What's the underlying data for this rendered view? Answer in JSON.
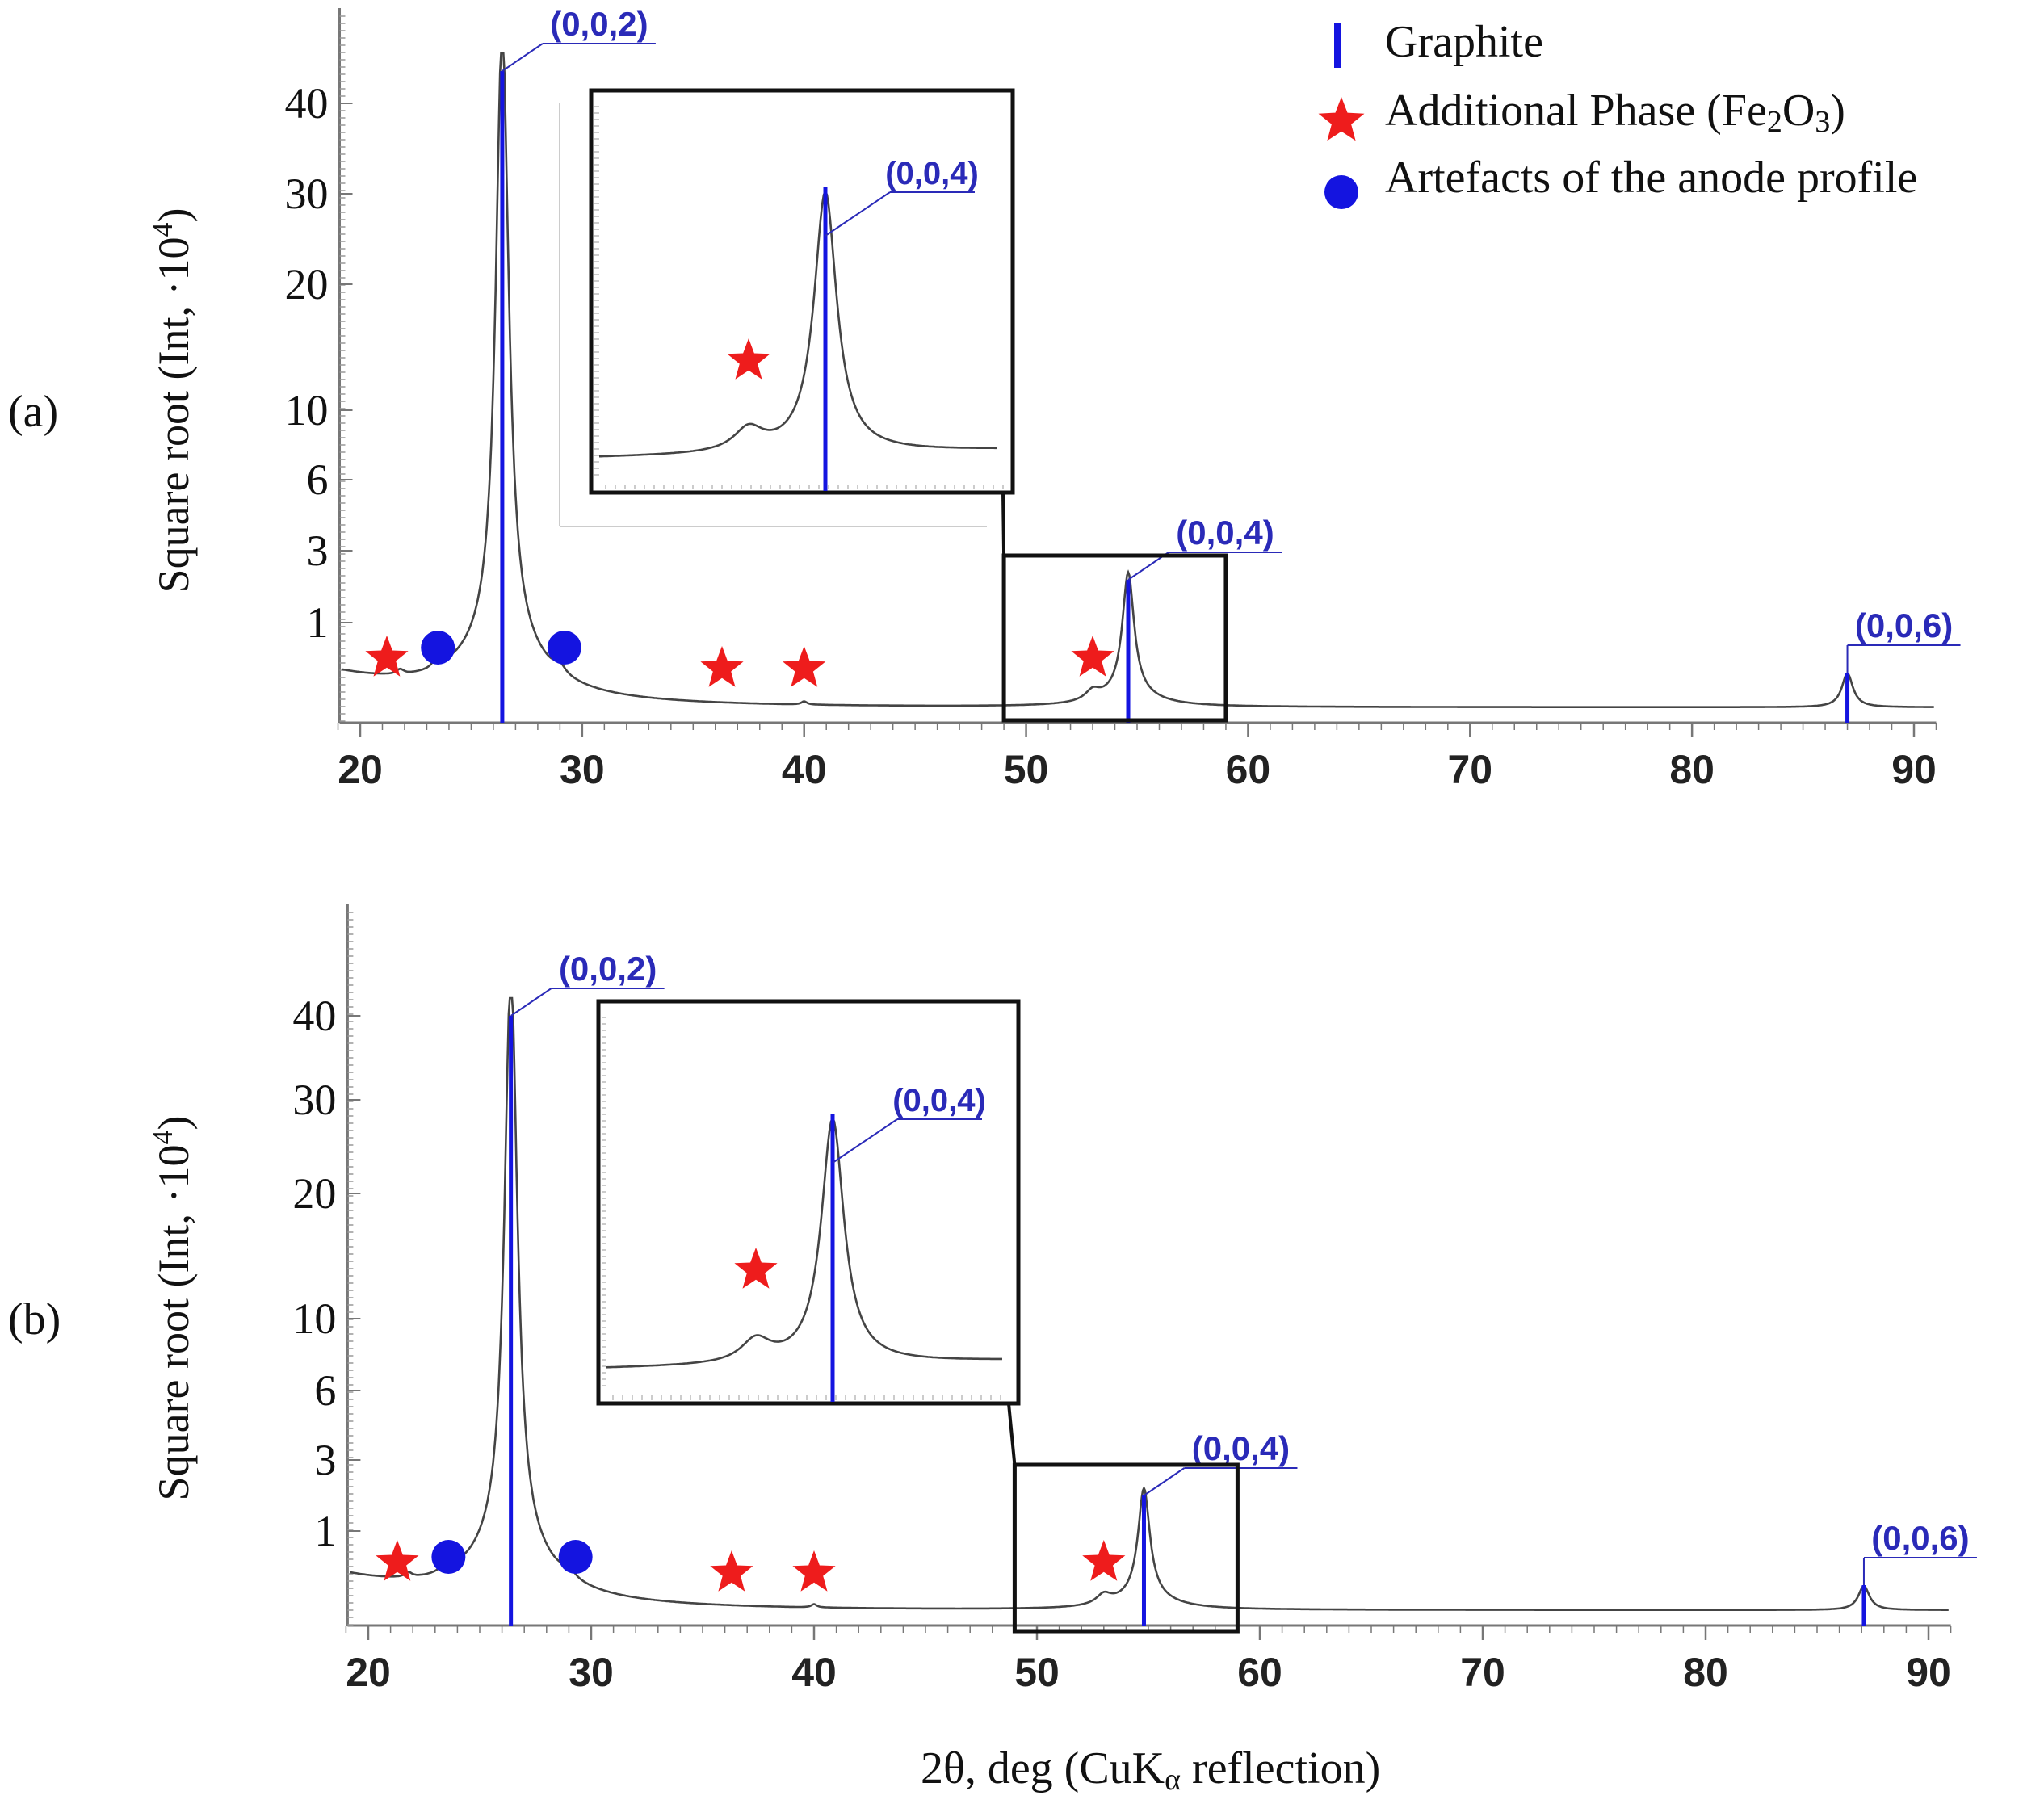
{
  "figure": {
    "xlabel_main": "2θ, deg (CuK",
    "xlabel_sub": "α",
    "xlabel_tail": " reflection)"
  },
  "legend": {
    "graphite": "Graphite",
    "fe2o3_prefix": "Additional Phase (Fe",
    "fe2o3_sub1": "2",
    "fe2o3_mid": "O",
    "fe2o3_sub2": "3",
    "fe2o3_suffix": ")",
    "artefacts": "Artefacts of the anode profile",
    "colors": {
      "graphite": "#1414e0",
      "fe2o3": "#ee1c1c",
      "artefacts": "#1414e0",
      "trace": "#444444",
      "hkl_label": "#2a2ab8"
    }
  },
  "chart_data": [
    {
      "panel": "(a)",
      "type": "line",
      "ylabel": "Square root (Int, ·10⁴)",
      "ylabel_main": "Square root (Int, ·10",
      "ylabel_sup": "4",
      "ylabel_tail": ")",
      "xlim": [
        19,
        91
      ],
      "x_ticks": [
        "20",
        "30",
        "40",
        "50",
        "60",
        "70",
        "80",
        "90"
      ],
      "y_ticks": [
        "1",
        "3",
        "6",
        "10",
        "20",
        "30",
        "40"
      ],
      "peaks": [
        {
          "hkl": "(0,0,2)",
          "two_theta": 26.4,
          "intensity": 45
        },
        {
          "hkl": "(0,0,4)",
          "two_theta": 54.6,
          "intensity": 1.8
        },
        {
          "hkl": "(0,0,6)",
          "two_theta": 87.0,
          "intensity": 0.6
        }
      ],
      "fe2o3_markers": [
        21.2,
        36.3,
        40.0,
        53.0
      ],
      "artefact_markers": [
        23.5,
        29.2
      ],
      "zoom_box": {
        "xlim": [
          49,
          59
        ]
      },
      "inset": {
        "hkl": "(0,0,4)",
        "peak_two_theta": 54.6,
        "fe2o3_two_theta": 53.0
      }
    },
    {
      "panel": "(b)",
      "type": "line",
      "ylabel": "Square root (Int, ·10⁴)",
      "ylabel_main": "Square root (Int, ·10",
      "ylabel_sup": "4",
      "ylabel_tail": ")",
      "xlim": [
        19,
        91
      ],
      "x_ticks": [
        "20",
        "30",
        "40",
        "50",
        "60",
        "70",
        "80",
        "90"
      ],
      "y_ticks": [
        "1",
        "3",
        "6",
        "10",
        "20",
        "30",
        "40"
      ],
      "peaks": [
        {
          "hkl": "(0,0,2)",
          "two_theta": 26.4,
          "intensity": 40
        },
        {
          "hkl": "(0,0,4)",
          "two_theta": 54.8,
          "intensity": 1.6
        },
        {
          "hkl": "(0,0,6)",
          "two_theta": 87.1,
          "intensity": 0.5
        }
      ],
      "fe2o3_markers": [
        21.3,
        36.3,
        40.0,
        53.0
      ],
      "artefact_markers": [
        23.6,
        29.3
      ],
      "zoom_box": {
        "xlim": [
          49,
          59
        ]
      },
      "inset": {
        "hkl": "(0,0,4)",
        "peak_two_theta": 54.8,
        "fe2o3_two_theta": 53.0
      }
    }
  ]
}
